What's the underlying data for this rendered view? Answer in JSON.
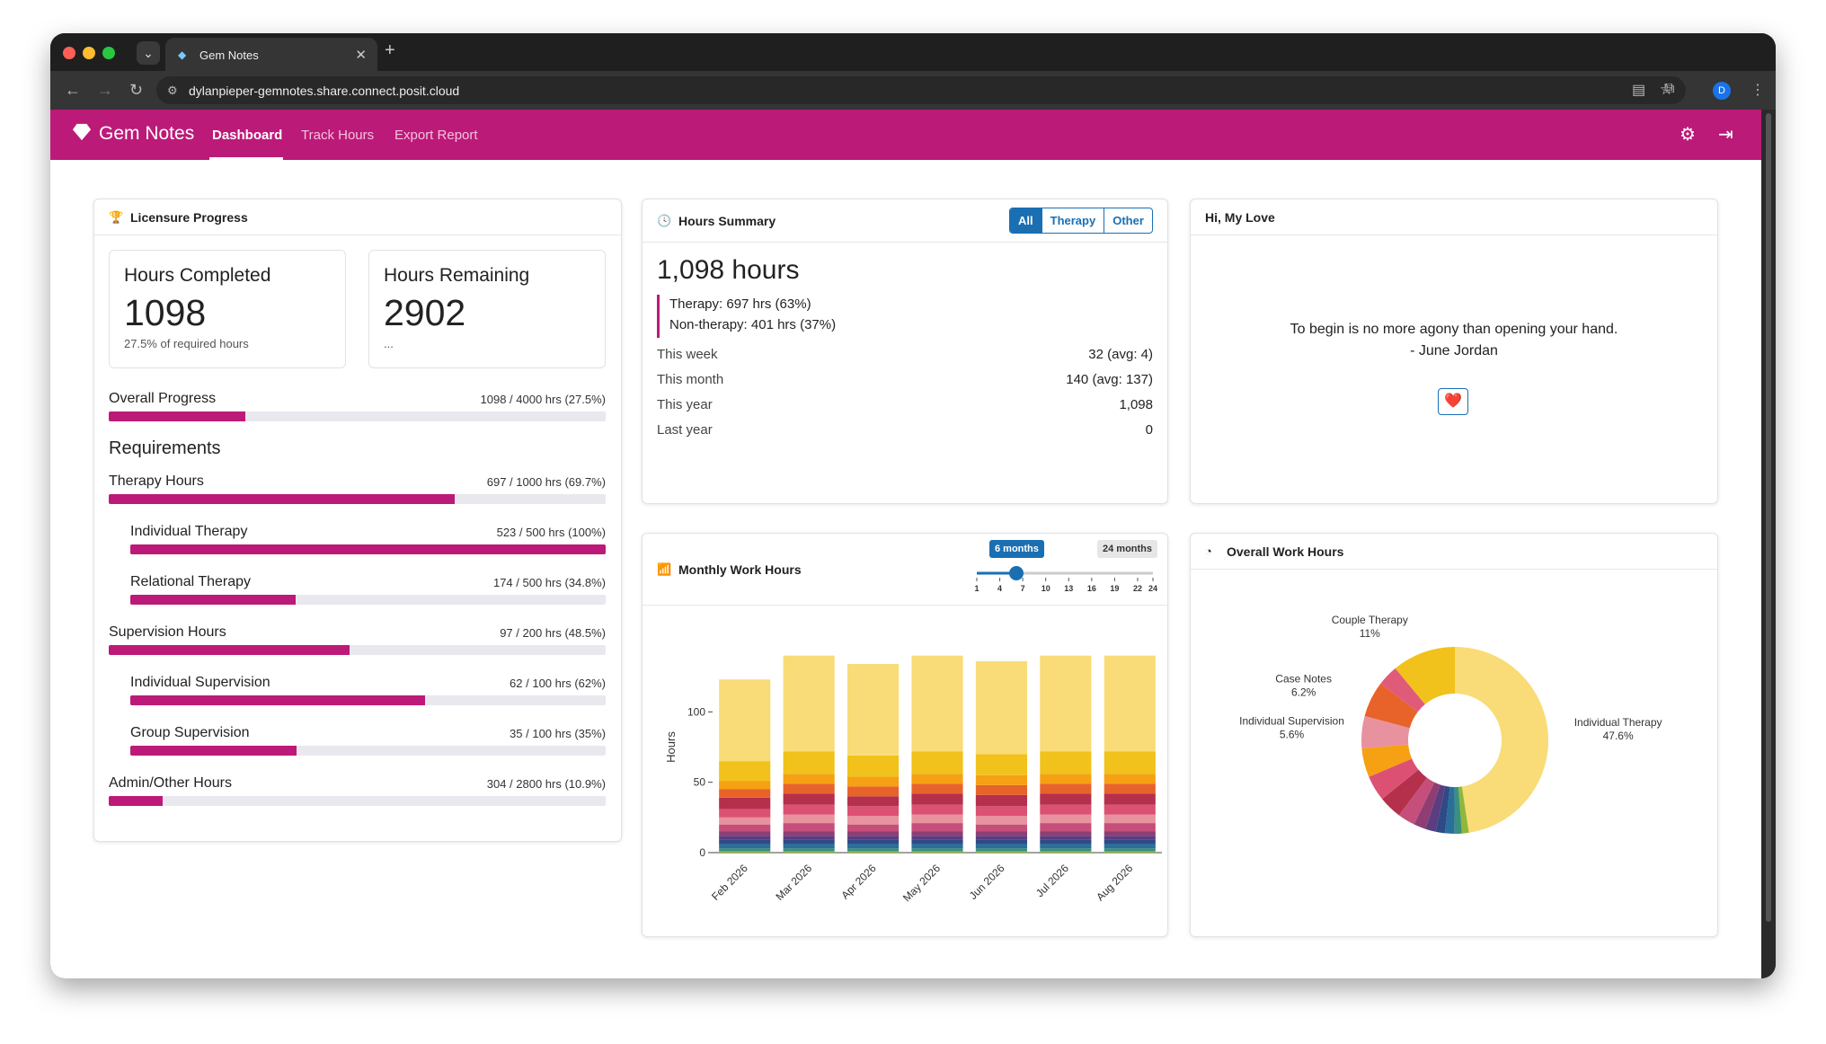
{
  "browser": {
    "tab_title": "Gem Notes",
    "url": "dylanpieper-gemnotes.share.connect.posit.cloud",
    "profile_initial": "D"
  },
  "app": {
    "brand": "Gem Notes",
    "nav": [
      "Dashboard",
      "Track Hours",
      "Export Report"
    ],
    "active_nav": "Dashboard",
    "accent_color": "#bc1a78"
  },
  "licensure": {
    "title": "Licensure Progress",
    "completed_label": "Hours Completed",
    "completed_value": "1098",
    "completed_sub": "27.5% of required hours",
    "remaining_label": "Hours Remaining",
    "remaining_value": "2902",
    "remaining_sub": "...",
    "overall_label": "Overall Progress",
    "overall_text": "1098 / 4000 hrs (27.5%)",
    "overall_pct": 27.5,
    "requirements_title": "Requirements",
    "requirements": [
      {
        "label": "Therapy Hours",
        "text": "697 / 1000 hrs (69.7%)",
        "pct": 69.7,
        "indent": false
      },
      {
        "label": "Individual Therapy",
        "text": "523 / 500 hrs (100%)",
        "pct": 100,
        "indent": true
      },
      {
        "label": "Relational Therapy",
        "text": "174 / 500 hrs (34.8%)",
        "pct": 34.8,
        "indent": true
      },
      {
        "label": "Supervision Hours",
        "text": "97 / 200 hrs (48.5%)",
        "pct": 48.5,
        "indent": false
      },
      {
        "label": "Individual Supervision",
        "text": "62 / 100 hrs (62%)",
        "pct": 62,
        "indent": true
      },
      {
        "label": "Group Supervision",
        "text": "35 / 100 hrs (35%)",
        "pct": 35,
        "indent": true
      },
      {
        "label": "Admin/Other Hours",
        "text": "304 / 2800 hrs (10.9%)",
        "pct": 10.9,
        "indent": false
      }
    ]
  },
  "summary": {
    "title": "Hours Summary",
    "filters": [
      "All",
      "Therapy",
      "Other"
    ],
    "active_filter": "All",
    "total": "1,098 hours",
    "therapy": "Therapy: 697 hrs (63%)",
    "non_therapy": "Non-therapy: 401 hrs (37%)",
    "rows": [
      {
        "label": "This week",
        "value": "32",
        "avg": "(avg: 4)"
      },
      {
        "label": "This month",
        "value": "140",
        "avg": "(avg: 137)"
      },
      {
        "label": "This year",
        "value": "1,098",
        "avg": ""
      },
      {
        "label": "Last year",
        "value": "0",
        "avg": ""
      }
    ]
  },
  "love": {
    "title": "Hi, My Love",
    "quote": "To begin is no more agony than opening your hand.",
    "author": "- June Jordan",
    "button": "❤️"
  },
  "monthly": {
    "title": "Monthly Work Hours",
    "slider": {
      "min_label": "6 months",
      "max_label": "24 months",
      "ticks": [
        "1",
        "4",
        "7",
        "10",
        "13",
        "16",
        "19",
        "22",
        "24"
      ],
      "value": 6
    }
  },
  "overall": {
    "title": "Overall Work Hours"
  },
  "chart_data": [
    {
      "type": "bar",
      "stacked": true,
      "categories": [
        "Feb 2026",
        "Mar 2026",
        "Apr 2026",
        "May 2026",
        "Jun 2026",
        "Jul 2026",
        "Aug 2026"
      ],
      "ylabel": "Hours",
      "xlabel": "",
      "yticks": [
        "0",
        "50",
        "100"
      ],
      "ylim": [
        0,
        150
      ],
      "colors": [
        "#f9dc77",
        "#f1c21b",
        "#f6a013",
        "#e8632a",
        "#b5304a",
        "#dc5173",
        "#e8929f",
        "#c54f7a",
        "#8e3e72",
        "#5a3e80",
        "#2f4a86",
        "#2a6f9a",
        "#3a8f80",
        "#8fb83a"
      ],
      "series_values": [
        [
          58,
          14,
          6,
          6,
          8,
          6,
          5,
          5,
          3,
          3,
          3,
          3,
          2,
          1
        ],
        [
          68,
          16,
          7,
          7,
          8,
          7,
          6,
          6,
          3,
          3,
          3,
          3,
          2,
          1
        ],
        [
          65,
          15,
          7,
          7,
          7,
          7,
          6,
          5,
          3,
          3,
          3,
          3,
          2,
          1
        ],
        [
          68,
          16,
          7,
          7,
          8,
          7,
          6,
          6,
          3,
          3,
          3,
          3,
          2,
          1
        ],
        [
          66,
          15,
          7,
          7,
          8,
          7,
          6,
          5,
          3,
          3,
          3,
          3,
          2,
          1
        ],
        [
          68,
          16,
          7,
          7,
          8,
          7,
          6,
          6,
          3,
          3,
          3,
          3,
          2,
          1
        ],
        [
          68,
          16,
          7,
          7,
          8,
          7,
          6,
          6,
          3,
          3,
          3,
          3,
          2,
          1
        ]
      ]
    },
    {
      "type": "pie",
      "donut": true,
      "slices": [
        {
          "label": "Individual Therapy",
          "value": 47.6,
          "color": "#f9dc77",
          "labeled": true
        },
        {
          "label": "",
          "value": 1.2,
          "color": "#8fb83a",
          "labeled": false
        },
        {
          "label": "",
          "value": 1.3,
          "color": "#3a8f80",
          "labeled": false
        },
        {
          "label": "",
          "value": 1.6,
          "color": "#2a6f9a",
          "labeled": false
        },
        {
          "label": "",
          "value": 1.6,
          "color": "#2f4a86",
          "labeled": false
        },
        {
          "label": "",
          "value": 1.8,
          "color": "#5a3e80",
          "labeled": false
        },
        {
          "label": "",
          "value": 2.1,
          "color": "#8e3e72",
          "labeled": false
        },
        {
          "label": "",
          "value": 3.0,
          "color": "#c54f7a",
          "labeled": false
        },
        {
          "label": "",
          "value": 4.0,
          "color": "#b5304a",
          "labeled": false
        },
        {
          "label": "",
          "value": 4.4,
          "color": "#dc5173",
          "labeled": false
        },
        {
          "label": "",
          "value": 5.0,
          "color": "#f6a013",
          "labeled": false
        },
        {
          "label": "Individual Supervision",
          "value": 5.6,
          "color": "#e8929f",
          "labeled": true
        },
        {
          "label": "Case Notes",
          "value": 6.2,
          "color": "#e8632a",
          "labeled": true
        },
        {
          "label": "",
          "value": 3.6,
          "color": "#e05a7a",
          "labeled": false
        },
        {
          "label": "Couple Therapy",
          "value": 11,
          "color": "#f1c21b",
          "labeled": true
        }
      ],
      "label_texts": {
        "Individual Therapy": "47.6%",
        "Couple Therapy": "11%",
        "Case Notes": "6.2%",
        "Individual Supervision": "5.6%"
      }
    }
  ]
}
